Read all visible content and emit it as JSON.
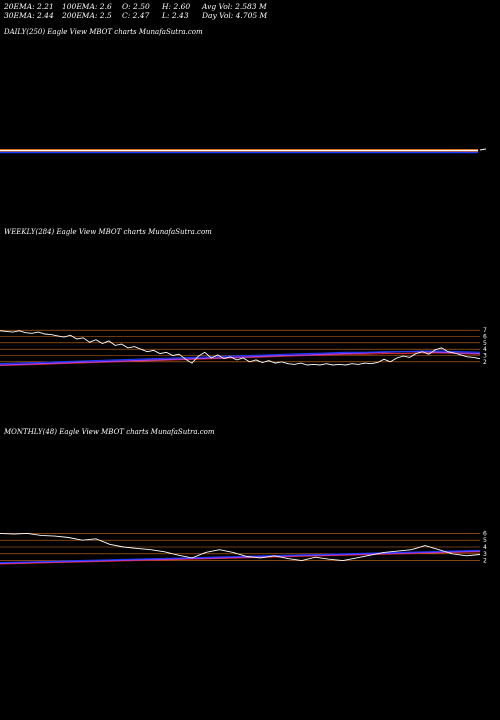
{
  "stats": {
    "ema20": "20EMA: 2.21",
    "ema100": "100EMA: 2.6",
    "open": "O: 2.50",
    "high": "H: 2.60",
    "avg_vol": "Avg Vol: 2.583 M",
    "ema30": "30EMA: 2.44",
    "ema200": "200EMA: 2.5",
    "close": "C: 2.47",
    "low": "L: 2.43",
    "day_vol": "Day Vol: 4.705 M"
  },
  "panels": {
    "daily_label": "DAILY(250) Eagle  View  MBOT charts MunafaSutra.com",
    "weekly_label": "WEEKLY(284) Eagle  View  MBOT charts MunafaSutra.com",
    "monthly_label": "MONTHLY(48) Eagle  View  MBOT charts MunafaSutra.com"
  },
  "colors": {
    "background": "#000000",
    "price": "#ffffff",
    "ema_blue": "#1e3cff",
    "ema_purple": "#a040ff",
    "ema_red": "#d22a2a",
    "level_line": "#d07020"
  },
  "chart_data": [
    {
      "type": "line",
      "name": "daily",
      "y_ticks": [],
      "series": [
        {
          "values": [
            2.5,
            2.5,
            2.5,
            2.5,
            2.5,
            2.5,
            2.5,
            2.5,
            2.5,
            2.5,
            2.5,
            2.5,
            2.5,
            2.5,
            2.5,
            2.5,
            2.5,
            2.5,
            2.5,
            2.5,
            2.5,
            2.5,
            2.5,
            2.5,
            2.5,
            2.5,
            2.5,
            2.5,
            2.5,
            2.5,
            2.5,
            2.5,
            2.5,
            2.5,
            2.5,
            2.5,
            2.5,
            2.5,
            2.5,
            2.5,
            2.5,
            2.5,
            2.5,
            2.5,
            2.5,
            2.5,
            2.5,
            2.5,
            2.6,
            2.47
          ]
        }
      ]
    },
    {
      "type": "line",
      "name": "weekly",
      "y_ticks": [
        "7",
        "6",
        "5",
        "4",
        "3",
        "2"
      ],
      "ylim": [
        1.5,
        7.5
      ],
      "levels": [
        7,
        6,
        5,
        4,
        3,
        2
      ],
      "series": [
        {
          "values": [
            6.9,
            6.8,
            6.7,
            6.9,
            6.6,
            6.5,
            6.7,
            6.4,
            6.3,
            6.1,
            5.9,
            6.2,
            5.6,
            5.8,
            5.1,
            5.5,
            4.9,
            5.3,
            4.6,
            4.8,
            4.2,
            4.4,
            4.0,
            3.6,
            3.8,
            3.3,
            3.5,
            3.0,
            3.2,
            2.4,
            1.8,
            2.9,
            3.5,
            2.6,
            3.1,
            2.5,
            2.8,
            2.3,
            2.6,
            2.0,
            2.3,
            1.9,
            2.2,
            1.8,
            2.0,
            1.7,
            1.6,
            1.8,
            1.5,
            1.6,
            1.5,
            1.7,
            1.5,
            1.6,
            1.5,
            1.7,
            1.6,
            1.8,
            1.7,
            1.9,
            2.4,
            2.0,
            2.6,
            2.9,
            2.7,
            3.3,
            3.6,
            3.2,
            3.9,
            4.2,
            3.6,
            3.4,
            3.1,
            2.8,
            2.7,
            2.5
          ]
        },
        {
          "values": [
            1.4,
            1.5,
            1.6,
            1.7,
            1.8,
            1.9,
            2.0,
            2.1,
            2.2,
            2.3,
            2.4,
            2.5,
            2.6,
            2.7,
            2.8,
            2.9,
            3.0,
            3.1,
            3.2,
            3.2,
            3.3,
            3.3,
            3.4,
            3.4,
            3.3,
            3.2
          ]
        },
        {
          "values": [
            1.5,
            1.6,
            1.7,
            1.8,
            1.9,
            2.0,
            2.1,
            2.2,
            2.3,
            2.4,
            2.5,
            2.6,
            2.7,
            2.8,
            2.9,
            3.0,
            3.1,
            3.2,
            3.3,
            3.4,
            3.5,
            3.6,
            3.6,
            3.5,
            3.4,
            3.3
          ]
        },
        {
          "values": [
            1.7,
            1.8,
            1.9,
            2.0,
            2.1,
            2.2,
            2.3,
            2.4,
            2.5,
            2.6,
            2.7,
            2.8,
            2.9,
            3.0,
            3.1,
            3.2,
            3.3,
            3.4,
            3.5,
            3.5,
            3.6,
            3.6,
            3.7,
            3.7,
            3.6,
            3.5
          ]
        }
      ]
    },
    {
      "type": "line",
      "name": "monthly",
      "y_ticks": [
        "6",
        "5",
        "4",
        "3",
        "2"
      ],
      "ylim": [
        1.5,
        6.5
      ],
      "levels": [
        6,
        5,
        4,
        3,
        2
      ],
      "series": [
        {
          "values": [
            6.0,
            5.9,
            6.0,
            5.7,
            5.6,
            5.4,
            5.0,
            5.2,
            4.4,
            4.0,
            3.8,
            3.6,
            3.3,
            2.8,
            2.4,
            3.2,
            3.6,
            3.2,
            2.6,
            2.4,
            2.7,
            2.3,
            2.0,
            2.5,
            2.2,
            2.0,
            2.4,
            2.8,
            3.2,
            3.4,
            3.6,
            4.2,
            3.6,
            3.0,
            2.7,
            2.9
          ]
        },
        {
          "values": [
            1.5,
            1.6,
            1.7,
            1.8,
            1.9,
            2.0,
            2.1,
            2.2,
            2.3,
            2.4,
            2.5,
            2.6,
            2.7,
            2.8,
            2.9,
            3.0,
            3.1,
            3.2,
            3.3
          ]
        },
        {
          "values": [
            1.6,
            1.7,
            1.8,
            1.9,
            2.0,
            2.1,
            2.2,
            2.3,
            2.4,
            2.5,
            2.6,
            2.7,
            2.8,
            2.9,
            3.0,
            3.1,
            3.2,
            3.3,
            3.4
          ]
        },
        {
          "values": [
            1.7,
            1.8,
            1.9,
            2.0,
            2.1,
            2.2,
            2.3,
            2.4,
            2.5,
            2.6,
            2.7,
            2.8,
            2.9,
            3.0,
            3.1,
            3.2,
            3.3,
            3.4,
            3.5
          ]
        }
      ]
    }
  ]
}
